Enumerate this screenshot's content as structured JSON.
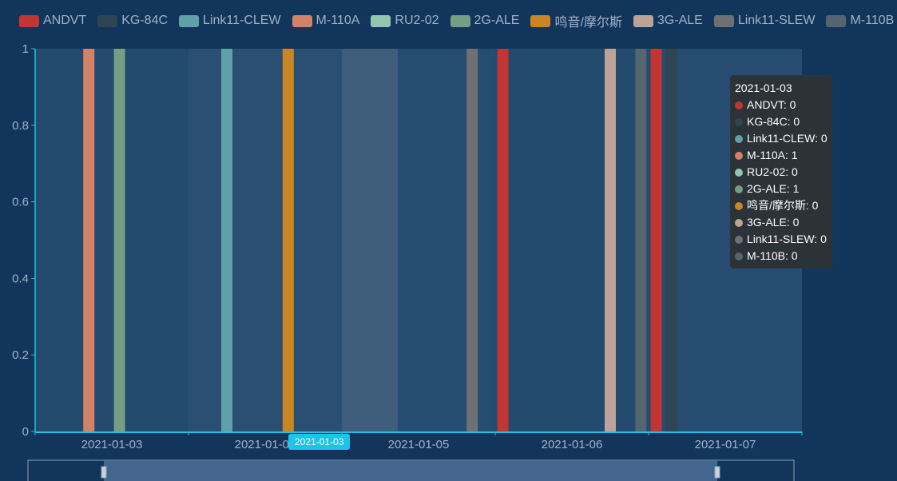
{
  "chart_data": {
    "type": "bar",
    "x": [
      "2021-01-03",
      "2021-01-04",
      "2021-01-05",
      "2021-01-06",
      "2021-01-07"
    ],
    "ylim": [
      0,
      1
    ],
    "yticks": [
      "0",
      "0.2",
      "0.4",
      "0.6",
      "0.8",
      "1"
    ],
    "grid": false,
    "legend_position": "top",
    "series": [
      {
        "name": "ANDVT",
        "color": "#c23531",
        "values": [
          0,
          0,
          0,
          1,
          1
        ]
      },
      {
        "name": "KG-84C",
        "color": "#2f4554",
        "values": [
          0,
          0,
          0,
          0,
          1
        ]
      },
      {
        "name": "Link11-CLEW",
        "color": "#61a0a8",
        "values": [
          0,
          1,
          0,
          0,
          0
        ]
      },
      {
        "name": "M-110A",
        "color": "#d48265",
        "values": [
          1,
          0,
          0,
          0,
          0
        ]
      },
      {
        "name": "RU2-02",
        "color": "#91c7ae",
        "values": [
          0,
          0,
          0,
          0,
          0
        ]
      },
      {
        "name": "2G-ALE",
        "color": "#749f83",
        "values": [
          1,
          0,
          0,
          0,
          0
        ]
      },
      {
        "name": "鸣音/摩尔斯",
        "color": "#ca8622",
        "values": [
          0,
          1,
          0,
          0,
          0
        ]
      },
      {
        "name": "3G-ALE",
        "color": "#bda29a",
        "values": [
          0,
          0,
          0,
          1,
          0
        ]
      },
      {
        "name": "Link11-SLEW",
        "color": "#6e7074",
        "values": [
          0,
          0,
          1,
          0,
          0
        ]
      },
      {
        "name": "M-110B",
        "color": "#546570",
        "values": [
          0,
          0,
          0,
          1,
          0
        ]
      }
    ]
  },
  "tooltip": {
    "title": "2021-01-03",
    "rows": [
      {
        "label": "ANDVT: 0",
        "color": "#c23531"
      },
      {
        "label": "KG-84C: 0",
        "color": "#2f4554"
      },
      {
        "label": "Link11-CLEW: 0",
        "color": "#61a0a8"
      },
      {
        "label": "M-110A: 1",
        "color": "#d48265"
      },
      {
        "label": "RU2-02: 0",
        "color": "#91c7ae"
      },
      {
        "label": "2G-ALE: 1",
        "color": "#749f83"
      },
      {
        "label": "鸣音/摩尔斯: 0",
        "color": "#ca8622"
      },
      {
        "label": "3G-ALE: 0",
        "color": "#bda29a"
      },
      {
        "label": "Link11-SLEW: 0",
        "color": "#6e7074"
      },
      {
        "label": "M-110B: 0",
        "color": "#546570"
      }
    ]
  },
  "axis_pointer_label": "2021-01-03",
  "colors": {
    "background": "#12355b",
    "axis": "#1bc4e8",
    "tick_text": "#9fb3c8",
    "slider_fill": "#4a6a93"
  }
}
